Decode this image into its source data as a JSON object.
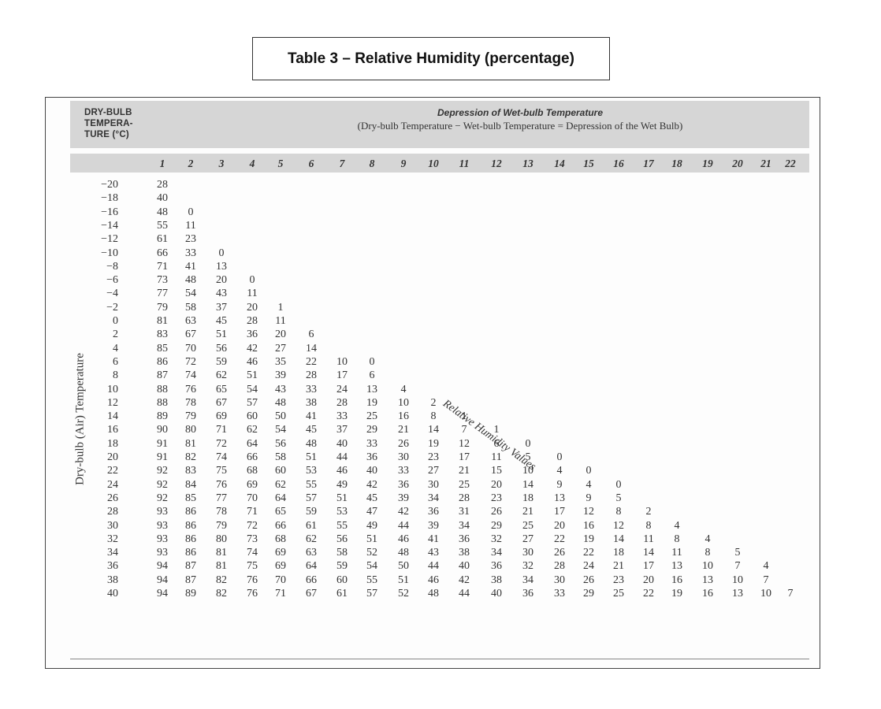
{
  "title": "Table 3 – Relative Humidity (percentage)",
  "header": {
    "dry_bulb": [
      "DRY-BULB",
      "TEMPERA-",
      "TURE (°C)"
    ],
    "depression_title": "Depression of Wet-bulb Temperature",
    "formula": "(Dry-bulb Temperature − Wet-bulb Temperature = Depression of the Wet Bulb)"
  },
  "axis_label": "Dry-bulb (Air) Temperature",
  "diagonal_label": "Relative Humidity Values",
  "columns": [
    "1",
    "2",
    "3",
    "4",
    "5",
    "6",
    "7",
    "8",
    "9",
    "10",
    "11",
    "12",
    "13",
    "14",
    "15",
    "16",
    "17",
    "18",
    "19",
    "20",
    "21",
    "22"
  ],
  "rows": [
    {
      "t": "−20",
      "v": [
        "28"
      ]
    },
    {
      "t": "−18",
      "v": [
        "40"
      ]
    },
    {
      "t": "−16",
      "v": [
        "48",
        "0"
      ]
    },
    {
      "t": "−14",
      "v": [
        "55",
        "11"
      ]
    },
    {
      "t": "−12",
      "v": [
        "61",
        "23"
      ]
    },
    {
      "t": "−10",
      "v": [
        "66",
        "33",
        "0"
      ]
    },
    {
      "t": "−8",
      "v": [
        "71",
        "41",
        "13"
      ]
    },
    {
      "t": "−6",
      "v": [
        "73",
        "48",
        "20",
        "0"
      ]
    },
    {
      "t": "−4",
      "v": [
        "77",
        "54",
        "43",
        "11"
      ]
    },
    {
      "t": "−2",
      "v": [
        "79",
        "58",
        "37",
        "20",
        "1"
      ]
    },
    {
      "t": "0",
      "v": [
        "81",
        "63",
        "45",
        "28",
        "11"
      ]
    },
    {
      "t": "2",
      "v": [
        "83",
        "67",
        "51",
        "36",
        "20",
        "6"
      ]
    },
    {
      "t": "4",
      "v": [
        "85",
        "70",
        "56",
        "42",
        "27",
        "14"
      ]
    },
    {
      "t": "6",
      "v": [
        "86",
        "72",
        "59",
        "46",
        "35",
        "22",
        "10",
        "0"
      ]
    },
    {
      "t": "8",
      "v": [
        "87",
        "74",
        "62",
        "51",
        "39",
        "28",
        "17",
        "6"
      ]
    },
    {
      "t": "10",
      "v": [
        "88",
        "76",
        "65",
        "54",
        "43",
        "33",
        "24",
        "13",
        "4"
      ]
    },
    {
      "t": "12",
      "v": [
        "88",
        "78",
        "67",
        "57",
        "48",
        "38",
        "28",
        "19",
        "10",
        "2"
      ]
    },
    {
      "t": "14",
      "v": [
        "89",
        "79",
        "69",
        "60",
        "50",
        "41",
        "33",
        "25",
        "16",
        "8",
        "1"
      ]
    },
    {
      "t": "16",
      "v": [
        "90",
        "80",
        "71",
        "62",
        "54",
        "45",
        "37",
        "29",
        "21",
        "14",
        "7",
        "1"
      ]
    },
    {
      "t": "18",
      "v": [
        "91",
        "81",
        "72",
        "64",
        "56",
        "48",
        "40",
        "33",
        "26",
        "19",
        "12",
        "6",
        "0"
      ]
    },
    {
      "t": "20",
      "v": [
        "91",
        "82",
        "74",
        "66",
        "58",
        "51",
        "44",
        "36",
        "30",
        "23",
        "17",
        "11",
        "5",
        "0"
      ]
    },
    {
      "t": "22",
      "v": [
        "92",
        "83",
        "75",
        "68",
        "60",
        "53",
        "46",
        "40",
        "33",
        "27",
        "21",
        "15",
        "10",
        "4",
        "0"
      ]
    },
    {
      "t": "24",
      "v": [
        "92",
        "84",
        "76",
        "69",
        "62",
        "55",
        "49",
        "42",
        "36",
        "30",
        "25",
        "20",
        "14",
        "9",
        "4",
        "0"
      ]
    },
    {
      "t": "26",
      "v": [
        "92",
        "85",
        "77",
        "70",
        "64",
        "57",
        "51",
        "45",
        "39",
        "34",
        "28",
        "23",
        "18",
        "13",
        "9",
        "5"
      ]
    },
    {
      "t": "28",
      "v": [
        "93",
        "86",
        "78",
        "71",
        "65",
        "59",
        "53",
        "47",
        "42",
        "36",
        "31",
        "26",
        "21",
        "17",
        "12",
        "8",
        "2"
      ]
    },
    {
      "t": "30",
      "v": [
        "93",
        "86",
        "79",
        "72",
        "66",
        "61",
        "55",
        "49",
        "44",
        "39",
        "34",
        "29",
        "25",
        "20",
        "16",
        "12",
        "8",
        "4"
      ]
    },
    {
      "t": "32",
      "v": [
        "93",
        "86",
        "80",
        "73",
        "68",
        "62",
        "56",
        "51",
        "46",
        "41",
        "36",
        "32",
        "27",
        "22",
        "19",
        "14",
        "11",
        "8",
        "4"
      ]
    },
    {
      "t": "34",
      "v": [
        "93",
        "86",
        "81",
        "74",
        "69",
        "63",
        "58",
        "52",
        "48",
        "43",
        "38",
        "34",
        "30",
        "26",
        "22",
        "18",
        "14",
        "11",
        "8",
        "5"
      ]
    },
    {
      "t": "36",
      "v": [
        "94",
        "87",
        "81",
        "75",
        "69",
        "64",
        "59",
        "54",
        "50",
        "44",
        "40",
        "36",
        "32",
        "28",
        "24",
        "21",
        "17",
        "13",
        "10",
        "7",
        "4"
      ]
    },
    {
      "t": "38",
      "v": [
        "94",
        "87",
        "82",
        "76",
        "70",
        "66",
        "60",
        "55",
        "51",
        "46",
        "42",
        "38",
        "34",
        "30",
        "26",
        "23",
        "20",
        "16",
        "13",
        "10",
        "7"
      ]
    },
    {
      "t": "40",
      "v": [
        "94",
        "89",
        "82",
        "76",
        "71",
        "67",
        "61",
        "57",
        "52",
        "48",
        "44",
        "40",
        "36",
        "33",
        "29",
        "25",
        "22",
        "19",
        "16",
        "13",
        "10",
        "7"
      ]
    }
  ]
}
